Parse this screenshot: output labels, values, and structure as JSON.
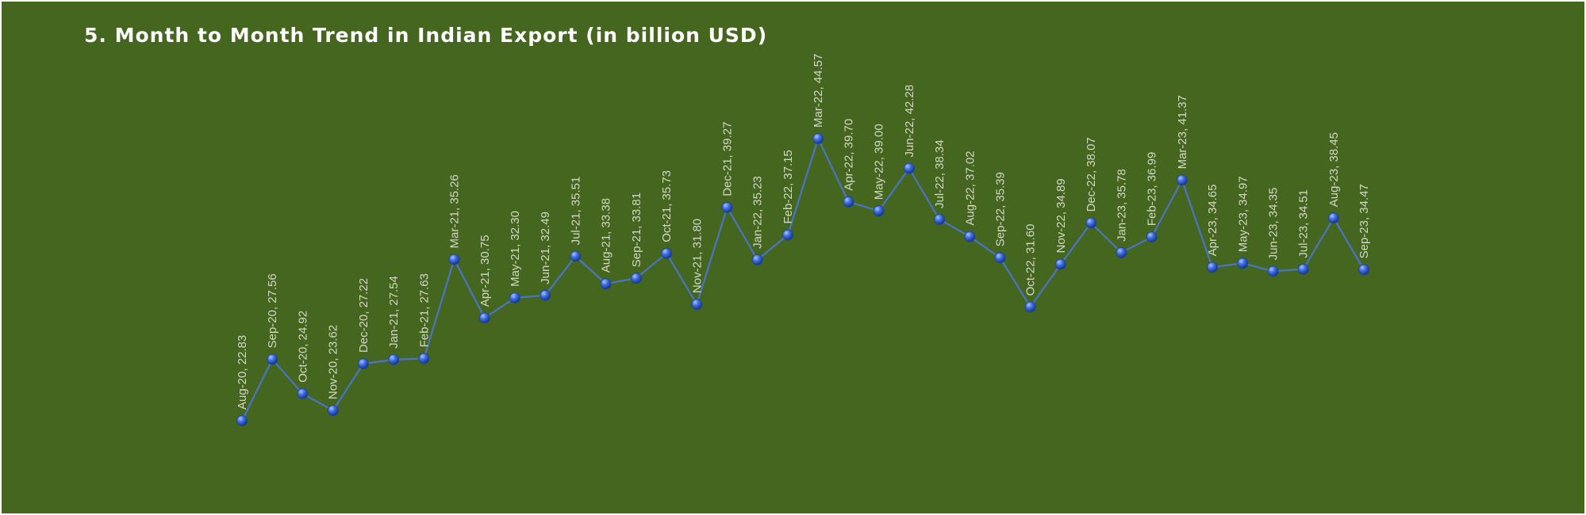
{
  "chart_data": {
    "type": "line",
    "title": "5. Month to Month Trend in Indian Export (in billion USD)",
    "xlabel": "",
    "ylabel": "",
    "grid": false,
    "legend": "none",
    "data_labels": true,
    "colors": {
      "background": "#45661f",
      "line": "#4a75c4",
      "marker": "#2f5fd0",
      "label": "#d4d7c6",
      "title": "#ffffff"
    },
    "categories": [
      "Aug-20",
      "Sep-20",
      "Oct-20",
      "Nov-20",
      "Dec-20",
      "Jan-21",
      "Feb-21",
      "Mar-21",
      "Apr-21",
      "May-21",
      "Jun-21",
      "Jul-21",
      "Aug-21",
      "Sep-21",
      "Oct-21",
      "Nov-21",
      "Dec-21",
      "Jan-22",
      "Feb-22",
      "Mar-22",
      "Apr-22",
      "May-22",
      "Jun-22",
      "Jul-22",
      "Aug-22",
      "Sep-22",
      "Oct-22",
      "Nov-22",
      "Dec-22",
      "Jan-23",
      "Feb-23",
      "Mar-23",
      "Apr-23",
      "May-23",
      "Jun-23",
      "Jul-23",
      "Aug-23",
      "Sep-23"
    ],
    "series": [
      {
        "values": [
          22.83,
          27.56,
          24.92,
          23.62,
          27.22,
          27.54,
          27.63,
          35.26,
          30.75,
          32.3,
          32.49,
          35.51,
          33.38,
          33.81,
          35.73,
          31.8,
          39.27,
          35.23,
          37.15,
          44.57,
          39.7,
          39.0,
          42.28,
          38.34,
          37.02,
          35.39,
          31.6,
          34.89,
          38.07,
          35.78,
          36.99,
          41.37,
          34.65,
          34.97,
          34.35,
          34.51,
          38.45,
          34.47
        ],
        "labels": [
          "Aug-20, 22.83",
          "Sep-20, 27.56",
          "Oct-20, 24.92",
          "Nov-20, 23.62",
          "Dec-20, 27.22",
          "Jan-21, 27.54",
          "Feb-21, 27.63",
          "Mar-21, 35.26",
          "Apr-21, 30.75",
          "May-21, 32.30",
          "Jun-21, 32.49",
          "Jul-21, 35.51",
          "Aug-21, 33.38",
          "Sep-21, 33.81",
          "Oct-21, 35.73",
          "Nov-21, 31.80",
          "Dec-21, 39.27",
          "Jan-22, 35.23",
          "Feb-22, 37.15",
          "Mar-22, 44.57",
          "Apr-22, 39.70",
          "May-22, 39.00",
          "Jun-22, 42.28",
          "Jul-22, 38.34",
          "Aug-22, 37.02",
          "Sep-22, 35.39",
          "Oct-22, 31.60",
          "Nov-22, 34.89",
          "Dec-22, 38.07",
          "Jan-23, 35.78",
          "Feb-23, 36.99",
          "Mar-23, 41.37",
          "Apr-23, 34.65",
          "May-23, 34.97",
          "Jun-23, 34.35",
          "Jul-23, 34.51",
          "Aug-23, 38.45",
          "Sep-23, 34.47"
        ]
      }
    ]
  }
}
